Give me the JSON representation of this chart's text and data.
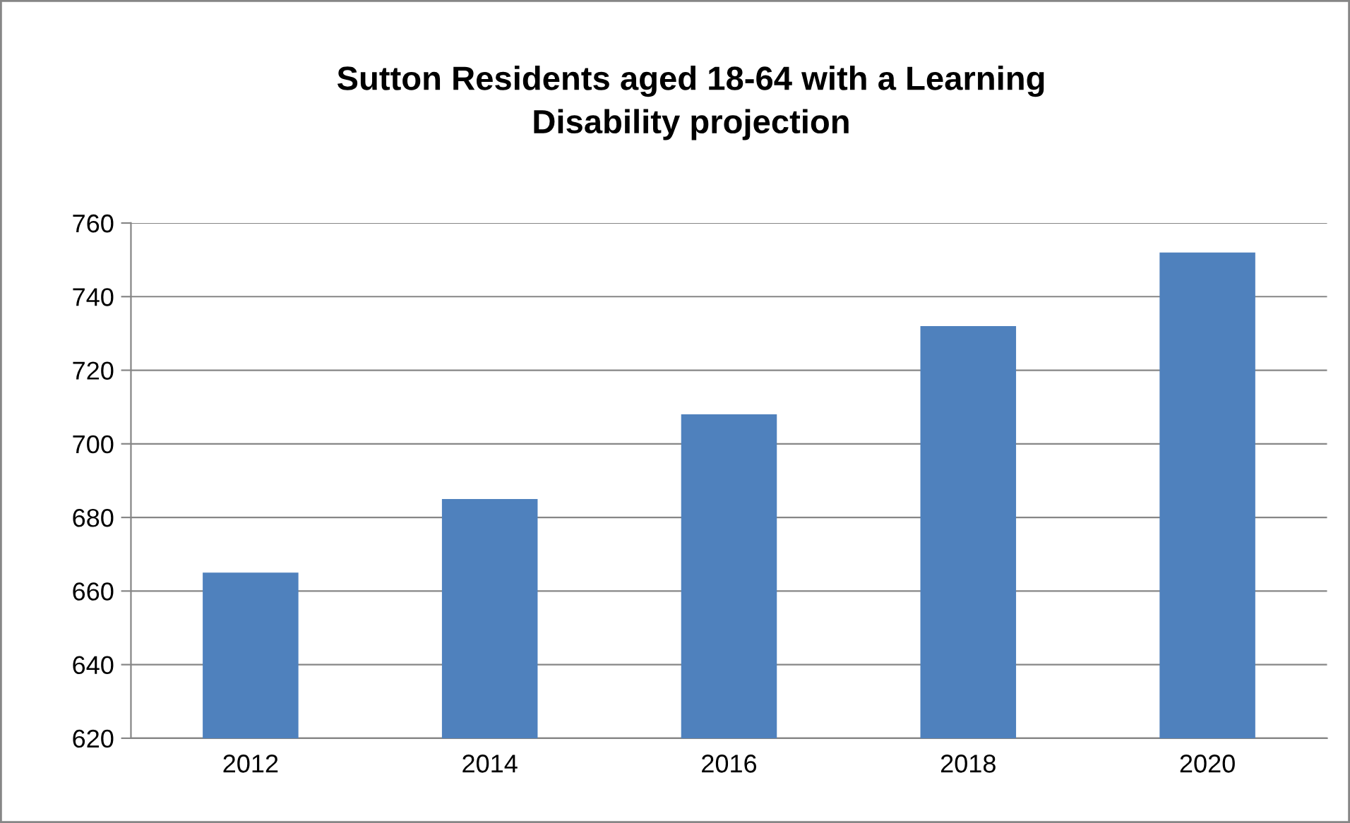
{
  "chart_data": {
    "type": "bar",
    "title": "Sutton Residents aged 18-64 with a Learning\nDisability projection",
    "categories": [
      "2012",
      "2014",
      "2016",
      "2018",
      "2020"
    ],
    "values": [
      665,
      685,
      708,
      732,
      752
    ],
    "color": "#4f81bd",
    "ylim": [
      620,
      760
    ],
    "yticks": [
      620,
      640,
      660,
      680,
      700,
      720,
      740,
      760
    ],
    "grid": "y",
    "legend": false
  }
}
